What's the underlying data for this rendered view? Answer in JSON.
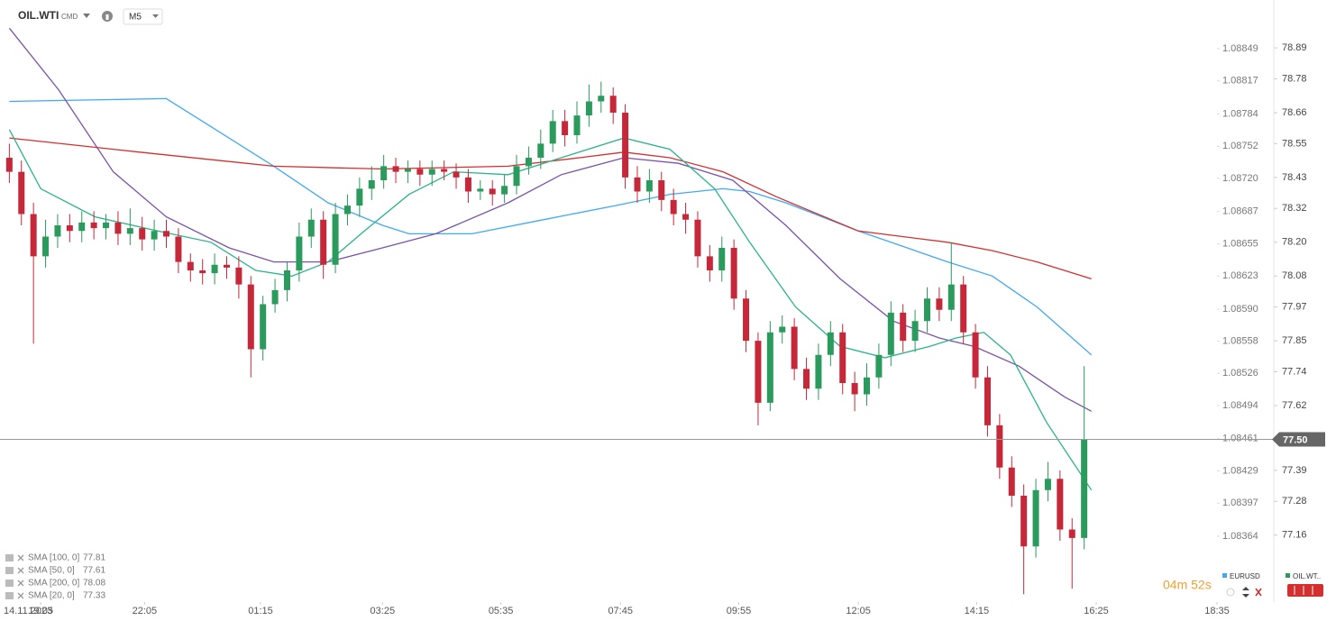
{
  "chart_data": {
    "type": "candlestick",
    "symbol": "OIL.WTI",
    "symbol_kind": "CMD",
    "interval": "M5",
    "date_label": "14.11.2023",
    "up_color": "#2b9a5d",
    "down_color": "#c62839",
    "xlim": [
      -0.4,
      100
    ],
    "xticks": [
      {
        "value": 2.6,
        "label": "19:05"
      },
      {
        "value": 11.2,
        "label": "22:05"
      },
      {
        "value": 20.8,
        "label": "01:15"
      },
      {
        "value": 30.9,
        "label": "03:25"
      },
      {
        "value": 40.7,
        "label": "05:35"
      },
      {
        "value": 50.6,
        "label": "07:45"
      },
      {
        "value": 60.4,
        "label": "09:55"
      },
      {
        "value": 70.3,
        "label": "12:05"
      },
      {
        "value": 80.1,
        "label": "14:15"
      },
      {
        "value": 90.0,
        "label": "16:25"
      },
      {
        "value": 100,
        "label": "18:35"
      }
    ],
    "ylim": [
      76.9,
      79.06
    ],
    "yticks": [
      78.89,
      78.78,
      78.66,
      78.55,
      78.43,
      78.32,
      {
        "value": 78.2,
        "label": "78.20"
      },
      78.08,
      77.97,
      77.85,
      77.74,
      77.62,
      77.39,
      77.28,
      77.16
    ],
    "y2lim": [
      1.082923,
      1.088974
    ],
    "y2ticks": [
      1.08849,
      1.08817,
      1.08784,
      1.08752,
      {
        "value": 1.0872,
        "label": "1.08720"
      },
      1.08687,
      1.08655,
      1.08623,
      {
        "value": 1.0859,
        "label": "1.08590"
      },
      1.08558,
      1.08526,
      1.08494,
      1.08461,
      1.08429,
      1.08397,
      1.08364
    ],
    "current_price": {
      "value": 77.5,
      "label": "77.50"
    },
    "ohlc": [
      [
        78.5,
        78.55,
        78.41,
        78.45
      ],
      [
        78.45,
        78.49,
        78.26,
        78.3
      ],
      [
        78.3,
        78.34,
        77.84,
        78.15
      ],
      [
        78.15,
        78.28,
        78.11,
        78.22
      ],
      [
        78.22,
        78.3,
        78.18,
        78.26
      ],
      [
        78.26,
        78.3,
        78.2,
        78.24
      ],
      [
        78.24,
        78.31,
        78.2,
        78.27
      ],
      [
        78.27,
        78.31,
        78.21,
        78.25
      ],
      [
        78.25,
        78.3,
        78.21,
        78.27
      ],
      [
        78.27,
        78.31,
        78.19,
        78.23
      ],
      [
        78.23,
        78.32,
        78.19,
        78.25
      ],
      [
        78.25,
        78.29,
        78.17,
        78.21
      ],
      [
        78.21,
        78.28,
        78.17,
        78.24
      ],
      [
        78.24,
        78.28,
        78.18,
        78.22
      ],
      [
        78.22,
        78.25,
        78.09,
        78.13
      ],
      [
        78.13,
        78.16,
        78.06,
        78.1
      ],
      [
        78.1,
        78.14,
        78.05,
        78.09
      ],
      [
        78.09,
        78.16,
        78.05,
        78.12
      ],
      [
        78.12,
        78.15,
        78.07,
        78.11
      ],
      [
        78.11,
        78.15,
        78.0,
        78.05
      ],
      [
        78.05,
        78.08,
        77.72,
        77.82
      ],
      [
        77.82,
        78.01,
        77.78,
        77.98
      ],
      [
        77.98,
        78.07,
        77.95,
        78.03
      ],
      [
        78.03,
        78.13,
        77.99,
        78.1
      ],
      [
        78.1,
        78.27,
        78.06,
        78.22
      ],
      [
        78.22,
        78.32,
        78.18,
        78.28
      ],
      [
        78.28,
        78.31,
        78.07,
        78.12
      ],
      [
        78.12,
        78.34,
        78.09,
        78.3
      ],
      [
        78.3,
        78.37,
        78.26,
        78.33
      ],
      [
        78.33,
        78.43,
        78.29,
        78.39
      ],
      [
        78.39,
        78.47,
        78.35,
        78.42
      ],
      [
        78.42,
        78.51,
        78.39,
        78.47
      ],
      [
        78.47,
        78.5,
        78.41,
        78.45
      ],
      [
        78.45,
        78.49,
        78.41,
        78.46
      ],
      [
        78.46,
        78.49,
        78.4,
        78.44
      ],
      [
        78.44,
        78.49,
        78.4,
        78.46
      ],
      [
        78.46,
        78.49,
        78.42,
        78.45
      ],
      [
        78.45,
        78.48,
        78.39,
        78.43
      ],
      [
        78.43,
        78.46,
        78.34,
        78.38
      ],
      [
        78.38,
        78.42,
        78.35,
        78.39
      ],
      [
        78.39,
        78.42,
        78.33,
        78.37
      ],
      [
        78.37,
        78.44,
        78.34,
        78.4
      ],
      [
        78.4,
        78.51,
        78.37,
        78.47
      ],
      [
        78.47,
        78.54,
        78.44,
        78.5
      ],
      [
        78.5,
        78.6,
        78.46,
        78.55
      ],
      [
        78.55,
        78.67,
        78.52,
        78.63
      ],
      [
        78.63,
        78.67,
        78.54,
        78.58
      ],
      [
        78.58,
        78.7,
        78.55,
        78.65
      ],
      [
        78.65,
        78.76,
        78.61,
        78.7
      ],
      [
        78.7,
        78.77,
        78.66,
        78.72
      ],
      [
        78.72,
        78.75,
        78.62,
        78.66
      ],
      [
        78.66,
        78.69,
        78.39,
        78.43
      ],
      [
        78.43,
        78.47,
        78.34,
        78.38
      ],
      [
        78.38,
        78.46,
        78.34,
        78.42
      ],
      [
        78.42,
        78.45,
        78.31,
        78.35
      ],
      [
        78.35,
        78.39,
        78.26,
        78.3
      ],
      [
        78.3,
        78.34,
        78.23,
        78.28
      ],
      [
        78.28,
        78.31,
        78.11,
        78.15
      ],
      [
        78.15,
        78.19,
        78.06,
        78.1
      ],
      [
        78.1,
        78.22,
        78.06,
        78.18
      ],
      [
        78.18,
        78.21,
        77.96,
        78.0
      ],
      [
        78.0,
        78.03,
        77.81,
        77.85
      ],
      [
        77.85,
        77.88,
        77.55,
        77.63
      ],
      [
        77.63,
        77.92,
        77.6,
        77.88
      ],
      [
        77.88,
        77.94,
        77.84,
        77.9
      ],
      [
        77.9,
        77.93,
        77.71,
        77.75
      ],
      [
        77.75,
        77.79,
        77.64,
        77.68
      ],
      [
        77.68,
        77.84,
        77.64,
        77.8
      ],
      [
        77.8,
        77.92,
        77.76,
        77.88
      ],
      [
        77.88,
        77.91,
        77.66,
        77.7
      ],
      [
        77.7,
        77.74,
        77.6,
        77.66
      ],
      [
        77.66,
        77.77,
        77.62,
        77.72
      ],
      [
        77.72,
        77.84,
        77.68,
        77.8
      ],
      [
        77.8,
        77.99,
        77.76,
        77.95
      ],
      [
        77.95,
        77.98,
        77.81,
        77.85
      ],
      [
        77.85,
        77.96,
        77.81,
        77.92
      ],
      [
        77.92,
        78.04,
        77.88,
        78.0
      ],
      [
        78.0,
        78.04,
        77.92,
        77.96
      ],
      [
        77.96,
        78.2,
        77.92,
        78.05
      ],
      [
        78.05,
        78.08,
        77.84,
        77.88
      ],
      [
        77.88,
        77.91,
        77.68,
        77.72
      ],
      [
        77.72,
        77.76,
        77.51,
        77.55
      ],
      [
        77.55,
        77.59,
        77.36,
        77.4
      ],
      [
        77.4,
        77.44,
        77.26,
        77.3
      ],
      [
        77.3,
        77.34,
        76.95,
        77.12
      ],
      [
        77.12,
        77.36,
        77.08,
        77.32
      ],
      [
        77.32,
        77.42,
        77.28,
        77.36
      ],
      [
        77.36,
        77.39,
        77.14,
        77.18
      ],
      [
        77.18,
        77.22,
        76.97,
        77.15
      ],
      [
        77.15,
        77.76,
        77.11,
        77.5
      ]
    ],
    "series": [
      {
        "name": "SMA [100, 0]",
        "color": "#3fa9f5",
        "legend_value": 77.81,
        "x": [
          0,
          13.0,
          16.7,
          21.9,
          26.4,
          30.9,
          33.1,
          38.3,
          44.2,
          50.2,
          54.7,
          59.1,
          61.3,
          64.3,
          70.3,
          77.7,
          81.4,
          85.1,
          89.6
        ],
        "values": [
          78.7,
          78.71,
          78.61,
          78.47,
          78.34,
          78.26,
          78.23,
          78.23,
          78.28,
          78.33,
          78.37,
          78.39,
          78.38,
          78.34,
          78.24,
          78.13,
          78.08,
          77.97,
          77.8
        ]
      },
      {
        "name": "SMA [50, 0]",
        "color": "#7b52ab",
        "legend_value": 77.61,
        "x": [
          0,
          4.1,
          8.6,
          13.0,
          18.2,
          21.9,
          26.4,
          30.9,
          35.3,
          41.3,
          45.7,
          50.9,
          55.4,
          59.9,
          64.3,
          68.8,
          73.2,
          77.0,
          79.9,
          83.6,
          87.4,
          89.6
        ],
        "values": [
          78.96,
          78.74,
          78.45,
          78.29,
          78.18,
          78.13,
          78.13,
          78.18,
          78.23,
          78.34,
          78.44,
          78.5,
          78.48,
          78.42,
          78.26,
          78.07,
          77.92,
          77.86,
          77.83,
          77.76,
          77.65,
          77.6
        ]
      },
      {
        "name": "SMA [200, 0]",
        "color": "#d32f2f",
        "legend_value": 78.08,
        "x": [
          0,
          10.8,
          21.9,
          30.9,
          41.3,
          47.2,
          50.9,
          54.7,
          59.1,
          63.6,
          70.3,
          77.7,
          81.4,
          85.1,
          89.6
        ],
        "values": [
          78.57,
          78.52,
          78.47,
          78.46,
          78.47,
          78.5,
          78.52,
          78.5,
          78.45,
          78.36,
          78.24,
          78.2,
          78.17,
          78.13,
          78.07
        ]
      },
      {
        "name": "SMA [20, 0]",
        "color": "#2bb38a",
        "legend_value": 77.33,
        "x": [
          0,
          2.6,
          7.1,
          12.3,
          16.7,
          20.4,
          23.4,
          26.4,
          29.4,
          33.1,
          36.8,
          41.3,
          45.7,
          50.9,
          54.7,
          58.4,
          61.3,
          65.1,
          68.8,
          72.5,
          76.2,
          78.4,
          80.7,
          82.9,
          85.9,
          89.6
        ],
        "values": [
          78.6,
          78.39,
          78.29,
          78.24,
          78.2,
          78.1,
          78.08,
          78.13,
          78.24,
          78.37,
          78.45,
          78.44,
          78.5,
          78.57,
          78.53,
          78.39,
          78.2,
          77.97,
          77.83,
          77.79,
          77.83,
          77.86,
          77.88,
          77.8,
          77.56,
          77.32
        ]
      }
    ],
    "countdown": "04m 52s",
    "compare_legend": [
      {
        "name": "EURUSD",
        "color": "#3fa9f5"
      },
      {
        "name": "OIL.WT..",
        "color": "#2b9a5d"
      }
    ]
  }
}
